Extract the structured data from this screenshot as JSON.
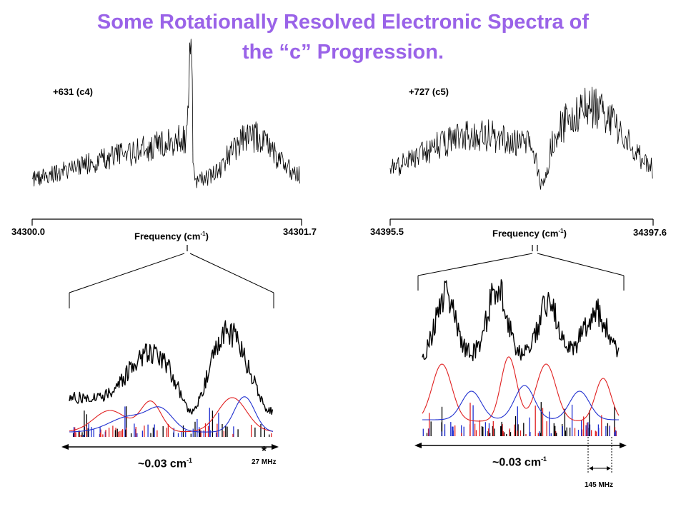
{
  "title": {
    "line1": "Some Rotationally Resolved Electronic Spectra of",
    "line2": "the “c” Progression."
  },
  "colors": {
    "title": "#9a63e8",
    "spectrum": "#000000",
    "sim_red": "#e02020",
    "sim_blue": "#2030d0"
  },
  "units": {
    "frequency_label": "Frequency (cm",
    "frequency_unit_exp": "-1",
    "frequency_close": ")",
    "approx_span": "~0.03 cm",
    "approx_exp": "-1"
  },
  "chart_data": [
    {
      "type": "line",
      "panel": "top-left",
      "label": "+631 (c4)",
      "xlabel": "Frequency (cm-1)",
      "xlim": [
        34300.0,
        34301.7
      ],
      "tick_labels": [
        "34300.0",
        "34301.7"
      ],
      "series": [
        {
          "values_description": "experimental spectrum"
        }
      ]
    },
    {
      "type": "line",
      "panel": "top-right",
      "label": "+727 (c5)",
      "xlabel": "Frequency (cm-1)",
      "xlim": [
        34395.5,
        34397.6
      ],
      "tick_labels": [
        "34395.5",
        "34397.6"
      ]
    },
    {
      "type": "line",
      "panel": "bottom-left",
      "span_label": "~0.03 cm-1",
      "annotation": "27 MHz",
      "marker": "*"
    },
    {
      "type": "line",
      "panel": "bottom-right",
      "span_label": "~0.03 cm-1",
      "annotation": "145 MHz"
    }
  ],
  "labels": {
    "left_peak": "+631 (c4)",
    "right_peak": "+727 (c5)",
    "left_xmin": "34300.0",
    "left_xmax": "34301.7",
    "right_xmin": "34395.5",
    "right_xmax": "34397.6",
    "left_span": "27 MHz",
    "right_span": "145 MHz",
    "asterisk": "*"
  }
}
